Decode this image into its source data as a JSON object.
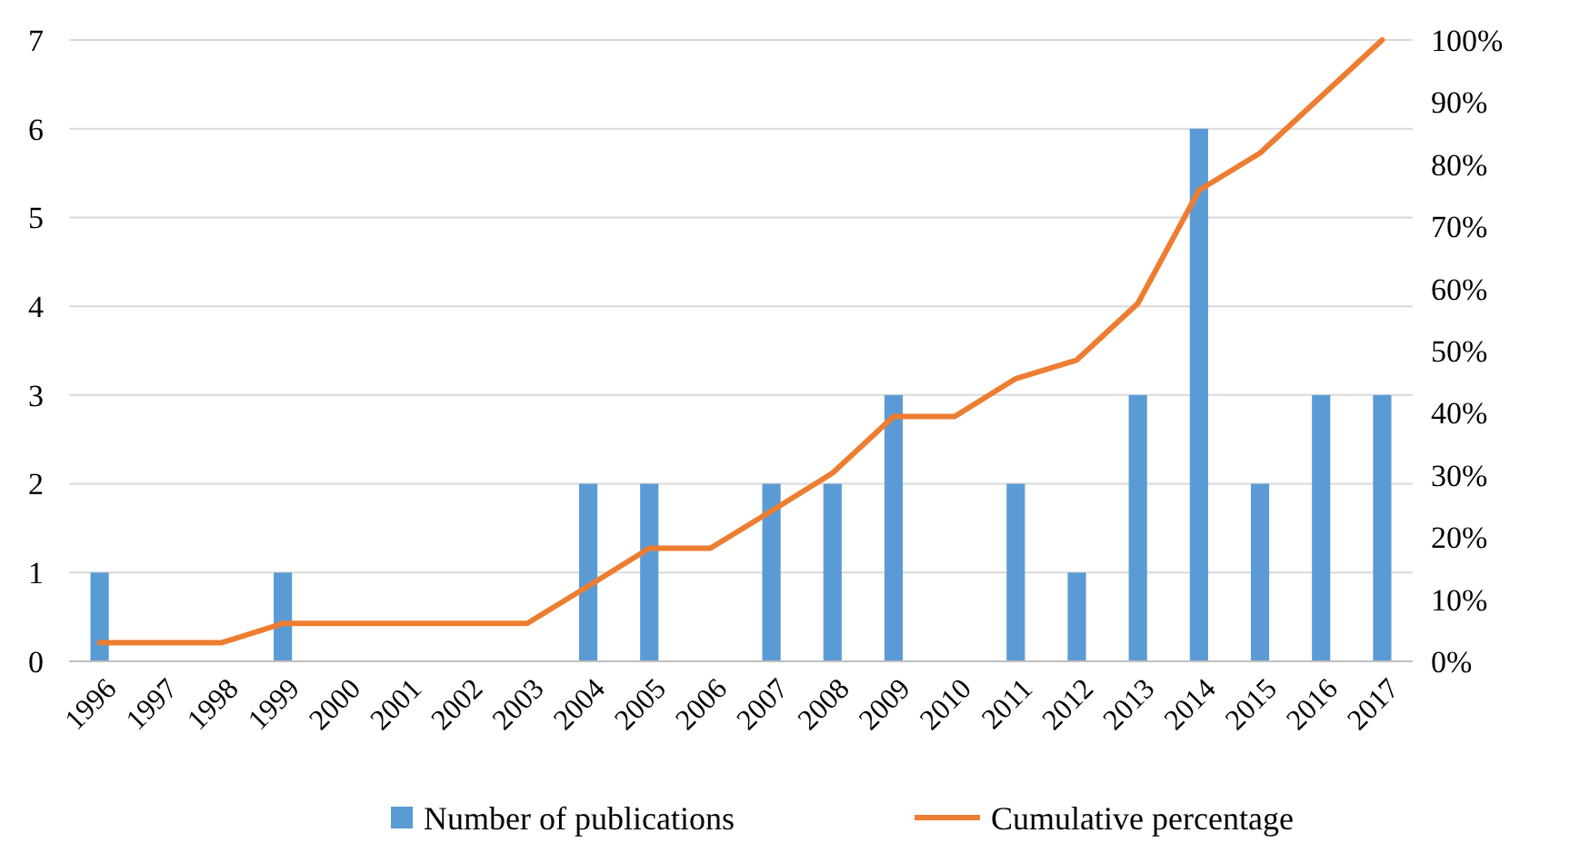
{
  "chart_data": {
    "type": "bar",
    "categories": [
      "1996",
      "1997",
      "1998",
      "1999",
      "2000",
      "2001",
      "2002",
      "2003",
      "2004",
      "2005",
      "2006",
      "2007",
      "2008",
      "2009",
      "2010",
      "2011",
      "2012",
      "2013",
      "2014",
      "2015",
      "2016",
      "2017"
    ],
    "series": [
      {
        "name": "Number of publications",
        "color": "#5b9bd5",
        "values": [
          1,
          0,
          0,
          1,
          0,
          0,
          0,
          0,
          2,
          2,
          0,
          2,
          2,
          3,
          0,
          2,
          1,
          3,
          6,
          2,
          3,
          3
        ]
      },
      {
        "name": "Cumulative percentage",
        "type": "line",
        "axis": "y2",
        "color": "#ed7d31",
        "values": [
          3.0,
          3.0,
          3.0,
          6.1,
          6.1,
          6.1,
          6.1,
          6.1,
          12.1,
          18.2,
          18.2,
          24.2,
          30.3,
          39.4,
          39.4,
          45.5,
          48.5,
          57.6,
          75.8,
          81.8,
          90.9,
          100
        ]
      }
    ],
    "ylim": [
      0,
      7
    ],
    "yticks": [
      0,
      1,
      2,
      3,
      4,
      5,
      6,
      7
    ],
    "y2lim": [
      0,
      100
    ],
    "y2ticks": [
      {
        "value": 0,
        "label": "0%"
      },
      {
        "value": 10,
        "label": "10%"
      },
      {
        "value": 20,
        "label": "20%"
      },
      {
        "value": 30,
        "label": "30%"
      },
      {
        "value": 40,
        "label": "40%"
      },
      {
        "value": 50,
        "label": "50%"
      },
      {
        "value": 60,
        "label": "60%"
      },
      {
        "value": 70,
        "label": "70%"
      },
      {
        "value": 80,
        "label": "80%"
      },
      {
        "value": 90,
        "label": "90%"
      },
      {
        "value": 100,
        "label": "100%"
      }
    ],
    "grid": "y",
    "legend": "bottom",
    "marker": "none",
    "line_style": "solid"
  }
}
